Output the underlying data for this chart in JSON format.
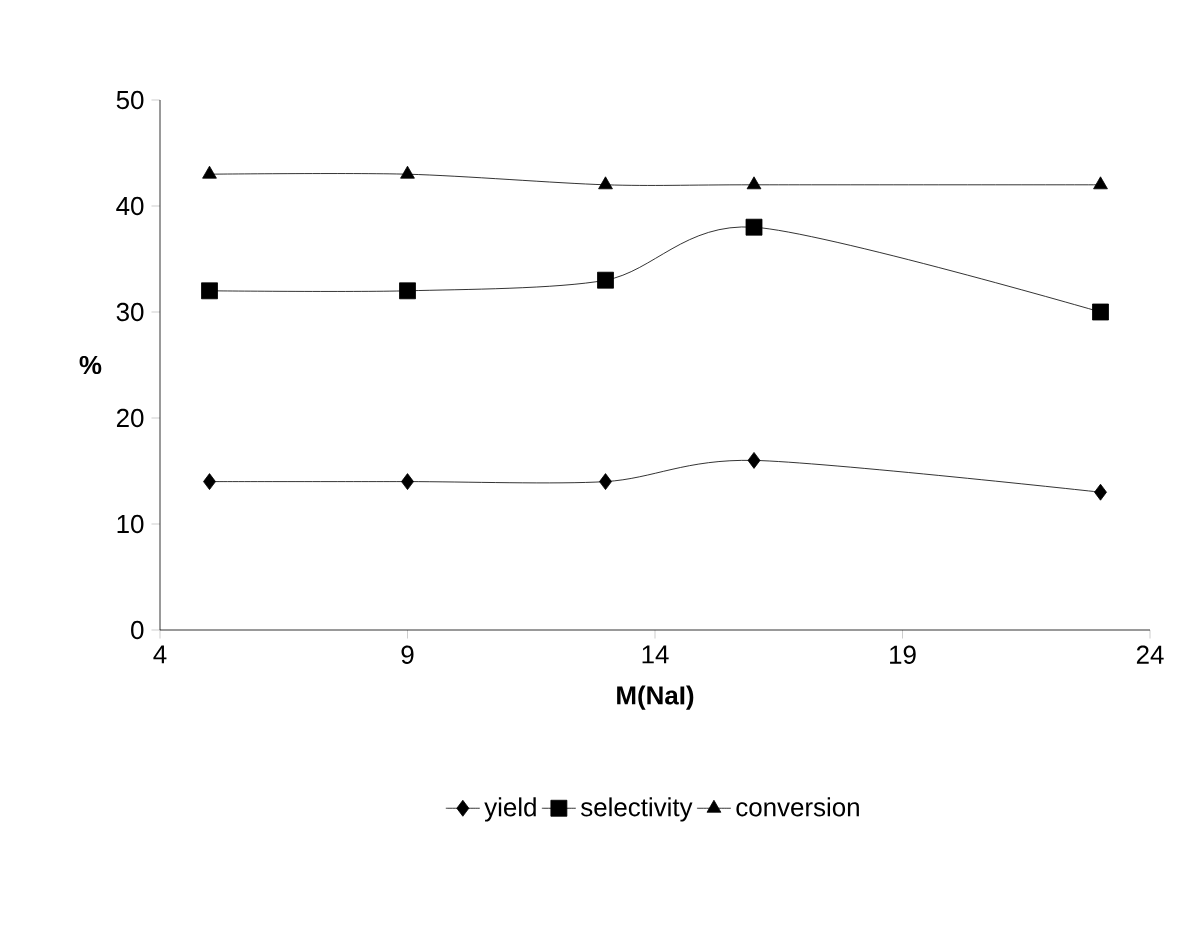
{
  "chart_data": {
    "type": "line",
    "xlabel": "M(NaI)",
    "ylabel": "%",
    "x": [
      5,
      9,
      13,
      16,
      23
    ],
    "series": [
      {
        "name": "yield",
        "color": "#000000",
        "marker": "diamond",
        "values": [
          14,
          14,
          14,
          16,
          13
        ]
      },
      {
        "name": "selectivity",
        "color": "#000000",
        "marker": "square",
        "values": [
          32,
          32,
          33,
          38,
          30
        ]
      },
      {
        "name": "conversion",
        "color": "#000000",
        "marker": "triangle",
        "values": [
          43,
          43,
          42,
          42,
          42
        ]
      }
    ],
    "xlim": [
      4,
      24
    ],
    "ylim": [
      0,
      50
    ],
    "xticks": [
      4,
      9,
      14,
      19,
      24
    ],
    "yticks": [
      0,
      10,
      20,
      30,
      40,
      50
    ],
    "grid": false,
    "legend": "bottom",
    "line_style": "solid"
  }
}
